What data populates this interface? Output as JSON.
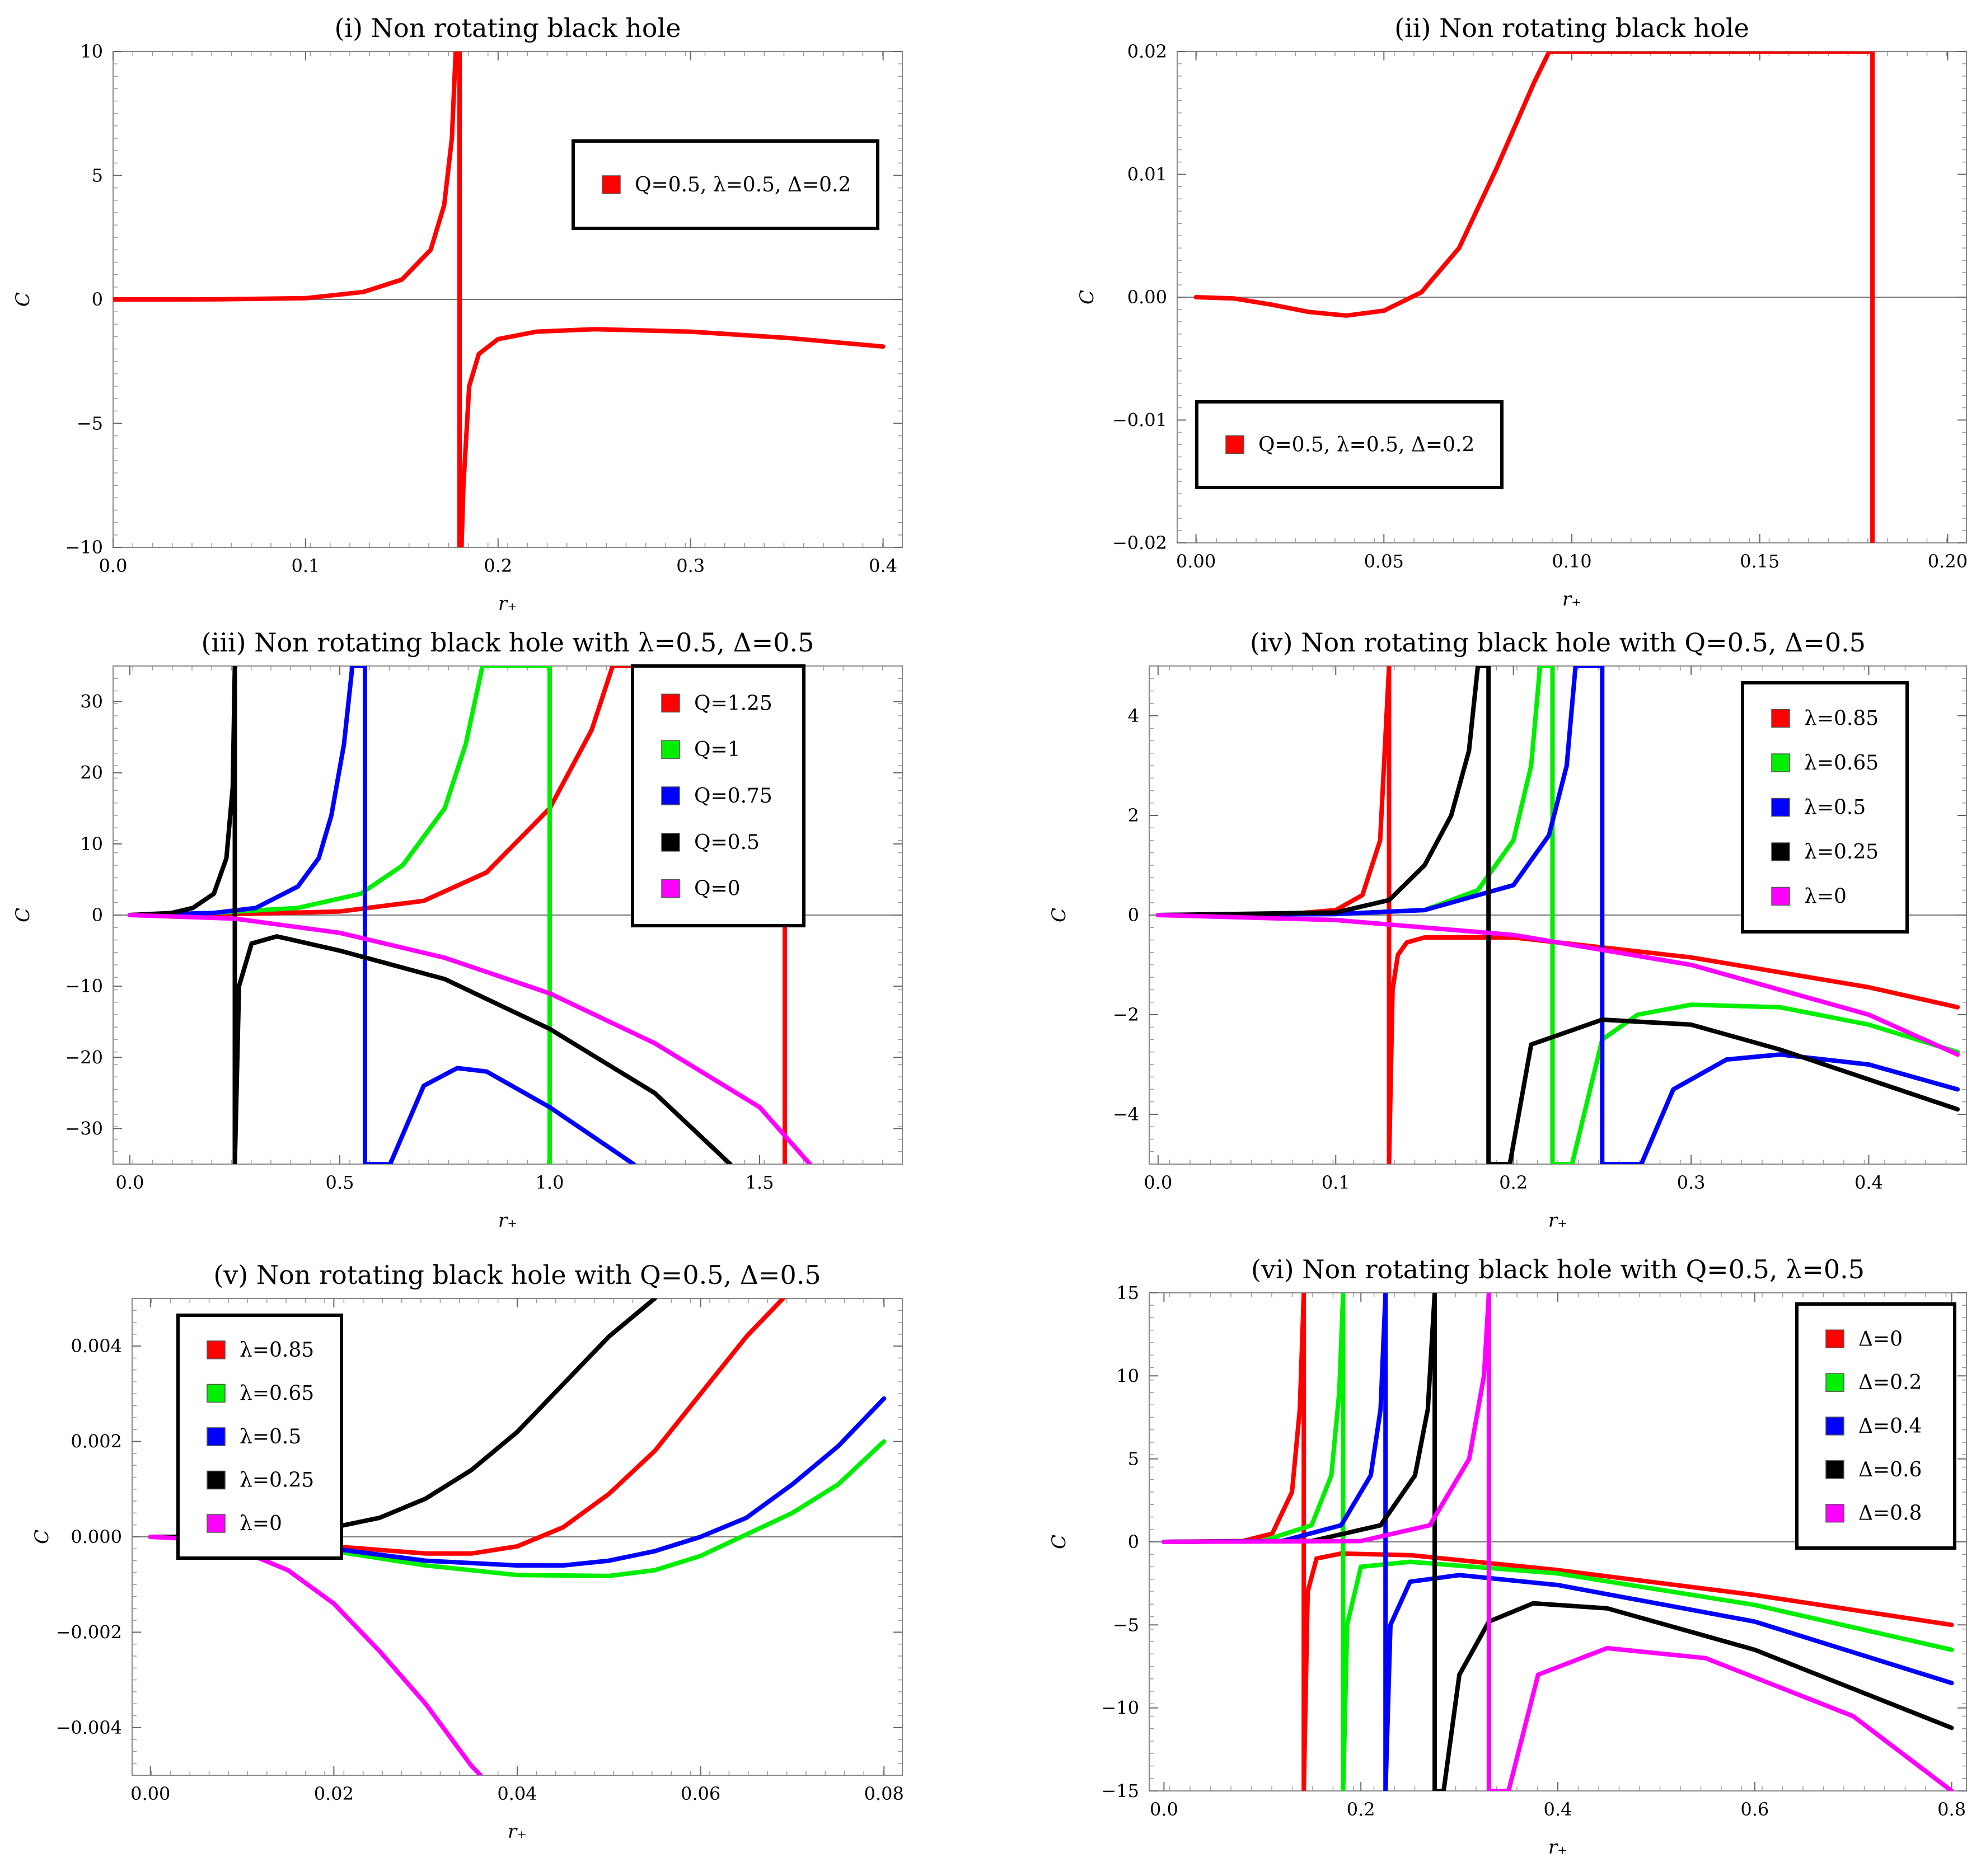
{
  "chart_data": [
    {
      "type": "line",
      "title": "(i) Non rotating black hole",
      "xlabel": "r₊",
      "ylabel": "C",
      "xlim": [
        0,
        0.41
      ],
      "ylim": [
        -10,
        10
      ],
      "xticks": [
        "0.0",
        "0.1",
        "0.2",
        "0.3",
        "0.4"
      ],
      "yticks": [
        "−10",
        "−5",
        "0",
        "5",
        "10"
      ],
      "legend_position": "top-right",
      "series": [
        {
          "name": "Q=0.5, λ=0.5, Δ=0.2",
          "color": "#ff0000",
          "x": [
            0,
            0.05,
            0.1,
            0.13,
            0.15,
            0.165,
            0.172,
            0.176,
            0.178,
            0.18,
            0.18,
            0.181,
            0.182,
            0.185,
            0.19,
            0.2,
            0.22,
            0.25,
            0.3,
            0.35,
            0.4
          ],
          "y": [
            0,
            0.003,
            0.05,
            0.3,
            0.8,
            2.0,
            3.8,
            6.5,
            10,
            10,
            -10,
            -10,
            -7.5,
            -3.5,
            -2.2,
            -1.6,
            -1.3,
            -1.2,
            -1.3,
            -1.55,
            -1.9
          ]
        }
      ]
    },
    {
      "type": "line",
      "title": "(ii) Non rotating black hole",
      "xlabel": "r₊",
      "ylabel": "C",
      "xlim": [
        -0.005,
        0.205
      ],
      "ylim": [
        -0.02,
        0.02
      ],
      "xticks": [
        "0.00",
        "0.05",
        "0.10",
        "0.15",
        "0.20"
      ],
      "yticks": [
        "−0.02",
        "−0.01",
        "0.00",
        "0.01",
        "0.02"
      ],
      "legend_position": "bottom-left",
      "series": [
        {
          "name": "Q=0.5, λ=0.5, Δ=0.2",
          "color": "#ff0000",
          "x": [
            0,
            0.01,
            0.02,
            0.03,
            0.04,
            0.05,
            0.06,
            0.07,
            0.08,
            0.09,
            0.094,
            0.18,
            0.18
          ],
          "y": [
            0,
            -0.0001,
            -0.0006,
            -0.0012,
            -0.0015,
            -0.0011,
            0.0004,
            0.004,
            0.0105,
            0.0175,
            0.02,
            0.02,
            -0.02
          ]
        }
      ]
    },
    {
      "type": "line",
      "title": "(iii) Non rotating black hole with λ=0.5, Δ=0.5",
      "xlabel": "r₊",
      "ylabel": "C",
      "xlim": [
        -0.04,
        1.84
      ],
      "ylim": [
        -35,
        35
      ],
      "xticks": [
        "0.0",
        "0.5",
        "1.0",
        "1.5"
      ],
      "yticks": [
        "−30",
        "−20",
        "−10",
        "0",
        "10",
        "20",
        "30"
      ],
      "legend_position": "top-right",
      "series": [
        {
          "name": "Q=1.25",
          "color": "#ff0000",
          "x": [
            0,
            0.3,
            0.5,
            0.7,
            0.85,
            1.0,
            1.1,
            1.15,
            1.56,
            1.56
          ],
          "y": [
            0,
            0.2,
            0.5,
            2.0,
            6.0,
            15.0,
            26.0,
            35.0,
            35.0,
            -35.0
          ]
        },
        {
          "name": "Q=1",
          "color": "#00ee00",
          "x": [
            0,
            0.2,
            0.4,
            0.55,
            0.65,
            0.75,
            0.8,
            0.84,
            1.0,
            1.0
          ],
          "y": [
            0,
            0.3,
            1.0,
            3.0,
            7.0,
            15.0,
            24.0,
            35.0,
            35.0,
            -35.0
          ]
        },
        {
          "name": "Q=0.75",
          "color": "#0000ff",
          "x": [
            0,
            0.2,
            0.3,
            0.4,
            0.45,
            0.48,
            0.51,
            0.53,
            0.56,
            0.56,
            0.62,
            0.7,
            0.78,
            0.85,
            1.0,
            1.2
          ],
          "y": [
            0,
            0.3,
            1.0,
            4.0,
            8.0,
            14.0,
            24.0,
            35.0,
            35.0,
            -35.0,
            -35.0,
            -24.0,
            -21.5,
            -22.0,
            -27.0,
            -35.0
          ]
        },
        {
          "name": "Q=0.5",
          "color": "#000000",
          "x": [
            0,
            0.1,
            0.15,
            0.2,
            0.23,
            0.245,
            0.25,
            0.25,
            0.25,
            0.26,
            0.29,
            0.35,
            0.5,
            0.75,
            1.0,
            1.25,
            1.43
          ],
          "y": [
            0,
            0.3,
            1.0,
            3.0,
            8.0,
            18.0,
            35.0,
            35.0,
            -35.0,
            -10.0,
            -4.0,
            -3.0,
            -5.0,
            -9.0,
            -16.0,
            -25.0,
            -35.0
          ]
        },
        {
          "name": "Q=0",
          "color": "#ff00ff",
          "x": [
            0,
            0.25,
            0.5,
            0.75,
            1.0,
            1.25,
            1.5,
            1.62
          ],
          "y": [
            0,
            -0.5,
            -2.5,
            -6.0,
            -11.0,
            -18.0,
            -27.0,
            -35.0
          ]
        }
      ],
      "vertical_asymptotes": [
        0.25,
        0.56,
        1.0,
        1.56
      ]
    },
    {
      "type": "line",
      "title": "(iv) Non rotating black hole with Q=0.5, Δ=0.5",
      "xlabel": "r₊",
      "ylabel": "C",
      "xlim": [
        -0.005,
        0.455
      ],
      "ylim": [
        -5,
        5
      ],
      "xticks": [
        "0.0",
        "0.1",
        "0.2",
        "0.3",
        "0.4"
      ],
      "yticks": [
        "−4",
        "−2",
        "0",
        "2",
        "4"
      ],
      "legend_position": "top-right",
      "series": [
        {
          "name": "λ=0.85",
          "color": "#ff0000",
          "x": [
            0,
            0.07,
            0.1,
            0.115,
            0.125,
            0.13,
            0.13,
            0.132,
            0.135,
            0.14,
            0.15,
            0.2,
            0.3,
            0.4,
            0.45
          ],
          "y": [
            0,
            0.01,
            0.1,
            0.4,
            1.5,
            5.0,
            -5.0,
            -1.5,
            -0.8,
            -0.55,
            -0.45,
            -0.45,
            -0.85,
            -1.45,
            -1.85
          ]
        },
        {
          "name": "λ=0.65",
          "color": "#00ee00",
          "x": [
            0,
            0.1,
            0.15,
            0.18,
            0.2,
            0.21,
            0.215,
            0.222,
            0.222,
            0.233,
            0.25,
            0.27,
            0.3,
            0.35,
            0.4,
            0.45
          ],
          "y": [
            0,
            0.02,
            0.1,
            0.5,
            1.5,
            3.0,
            5.0,
            5.0,
            -5.0,
            -5.0,
            -2.5,
            -2.0,
            -1.8,
            -1.85,
            -2.2,
            -2.75
          ]
        },
        {
          "name": "λ=0.5",
          "color": "#0000ff",
          "x": [
            0,
            0.1,
            0.15,
            0.2,
            0.22,
            0.23,
            0.235,
            0.25,
            0.25,
            0.272,
            0.29,
            0.32,
            0.35,
            0.4,
            0.45
          ],
          "y": [
            0,
            0.02,
            0.1,
            0.6,
            1.6,
            3.0,
            5.0,
            5.0,
            -5.0,
            -5.0,
            -3.5,
            -2.9,
            -2.8,
            -3.0,
            -3.5
          ]
        },
        {
          "name": "λ=0.25",
          "color": "#000000",
          "x": [
            0,
            0.1,
            0.13,
            0.15,
            0.165,
            0.175,
            0.18,
            0.186,
            0.186,
            0.198,
            0.21,
            0.25,
            0.3,
            0.35,
            0.4,
            0.45
          ],
          "y": [
            0,
            0.05,
            0.3,
            1.0,
            2.0,
            3.3,
            5.0,
            5.0,
            -5.0,
            -5.0,
            -2.6,
            -2.1,
            -2.2,
            -2.7,
            -3.3,
            -3.9
          ]
        },
        {
          "name": "λ=0",
          "color": "#ff00ff",
          "x": [
            0,
            0.1,
            0.2,
            0.3,
            0.4,
            0.45
          ],
          "y": [
            0,
            -0.1,
            -0.4,
            -1.0,
            -2.0,
            -2.8
          ]
        }
      ],
      "vertical_asymptotes": [
        0.13,
        0.186,
        0.222,
        0.25
      ]
    },
    {
      "type": "line",
      "title": "(v) Non rotating black hole with Q=0.5, Δ=0.5",
      "xlabel": "r₊",
      "ylabel": "C",
      "xlim": [
        -0.002,
        0.082
      ],
      "ylim": [
        -0.005,
        0.005
      ],
      "xticks": [
        "0.00",
        "0.02",
        "0.04",
        "0.06",
        "0.08"
      ],
      "yticks": [
        "−0.004",
        "−0.002",
        "0.000",
        "0.002",
        "0.004"
      ],
      "legend_position": "top-left",
      "series": [
        {
          "name": "λ=0.85",
          "color": "#ff0000",
          "x": [
            0,
            0.01,
            0.02,
            0.03,
            0.035,
            0.04,
            0.045,
            0.05,
            0.055,
            0.06,
            0.065,
            0.069
          ],
          "y": [
            0,
            -3e-05,
            -0.0002,
            -0.00035,
            -0.00035,
            -0.0002,
            0.0002,
            0.0009,
            0.0018,
            0.003,
            0.0042,
            0.005
          ]
        },
        {
          "name": "λ=0.65",
          "color": "#00ee00",
          "x": [
            0,
            0.01,
            0.02,
            0.03,
            0.04,
            0.05,
            0.055,
            0.06,
            0.065,
            0.07,
            0.075,
            0.08
          ],
          "y": [
            0,
            -5e-05,
            -0.0003,
            -0.0006,
            -0.0008,
            -0.00082,
            -0.0007,
            -0.0004,
            5e-05,
            0.0005,
            0.0011,
            0.002
          ]
        },
        {
          "name": "λ=0.5",
          "color": "#0000ff",
          "x": [
            0,
            0.01,
            0.02,
            0.03,
            0.04,
            0.045,
            0.05,
            0.055,
            0.06,
            0.065,
            0.07,
            0.075,
            0.08
          ],
          "y": [
            0,
            -5e-05,
            -0.00025,
            -0.0005,
            -0.0006,
            -0.0006,
            -0.0005,
            -0.0003,
            0.0,
            0.0004,
            0.0011,
            0.0019,
            0.0029
          ]
        },
        {
          "name": "λ=0.25",
          "color": "#000000",
          "x": [
            0,
            0.01,
            0.02,
            0.025,
            0.03,
            0.035,
            0.04,
            0.045,
            0.05,
            0.055
          ],
          "y": [
            0,
            0.0,
            0.0002,
            0.0004,
            0.0008,
            0.0014,
            0.0022,
            0.0032,
            0.0042,
            0.005
          ]
        },
        {
          "name": "λ=0",
          "color": "#ff00ff",
          "x": [
            0,
            0.005,
            0.01,
            0.015,
            0.02,
            0.025,
            0.03,
            0.035,
            0.036
          ],
          "y": [
            0,
            -5e-05,
            -0.0003,
            -0.0007,
            -0.0014,
            -0.0024,
            -0.0035,
            -0.0048,
            -0.005
          ]
        }
      ]
    },
    {
      "type": "line",
      "title": "(vi) Non rotating black hole with Q=0.5, λ=0.5",
      "xlabel": "r₊",
      "ylabel": "C",
      "xlim": [
        -0.015,
        0.815
      ],
      "ylim": [
        -15,
        15
      ],
      "xticks": [
        "0.0",
        "0.2",
        "0.4",
        "0.6",
        "0.8"
      ],
      "yticks": [
        "−15",
        "−10",
        "−5",
        "0",
        "5",
        "10",
        "15"
      ],
      "legend_position": "top-right",
      "series": [
        {
          "name": "Δ=0",
          "color": "#ff0000",
          "x": [
            0,
            0.08,
            0.11,
            0.13,
            0.138,
            0.142,
            0.142,
            0.146,
            0.155,
            0.18,
            0.25,
            0.4,
            0.6,
            0.8
          ],
          "y": [
            0,
            0.05,
            0.5,
            3.0,
            8.0,
            15.0,
            -15.0,
            -3.0,
            -1.0,
            -0.7,
            -0.8,
            -1.7,
            -3.2,
            -5.0
          ]
        },
        {
          "name": "Δ=0.2",
          "color": "#00ee00",
          "x": [
            0,
            0.1,
            0.15,
            0.17,
            0.178,
            0.182,
            0.182,
            0.186,
            0.2,
            0.25,
            0.4,
            0.6,
            0.8
          ],
          "y": [
            0,
            0.05,
            1.0,
            4.0,
            9.0,
            15.0,
            -15.0,
            -5.0,
            -1.5,
            -1.2,
            -1.9,
            -3.8,
            -6.5
          ]
        },
        {
          "name": "Δ=0.4",
          "color": "#0000ff",
          "x": [
            0,
            0.12,
            0.18,
            0.21,
            0.22,
            0.225,
            0.225,
            0.23,
            0.25,
            0.3,
            0.4,
            0.6,
            0.8
          ],
          "y": [
            0,
            0.05,
            1.0,
            4.0,
            8.0,
            15.0,
            -15.0,
            -5.0,
            -2.4,
            -2.0,
            -2.6,
            -4.8,
            -8.5
          ]
        },
        {
          "name": "Δ=0.6",
          "color": "#000000",
          "x": [
            0,
            0.15,
            0.22,
            0.255,
            0.268,
            0.275,
            0.275,
            0.284,
            0.3,
            0.33,
            0.375,
            0.45,
            0.6,
            0.8
          ],
          "y": [
            0,
            0.05,
            1.0,
            4.0,
            8.0,
            15.0,
            -15.0,
            -15.0,
            -8.0,
            -4.8,
            -3.7,
            -4.0,
            -6.5,
            -11.2
          ]
        },
        {
          "name": "Δ=0.8",
          "color": "#ff00ff",
          "x": [
            0,
            0.2,
            0.27,
            0.31,
            0.325,
            0.33,
            0.33,
            0.35,
            0.38,
            0.45,
            0.55,
            0.7,
            0.8
          ],
          "y": [
            0,
            0.05,
            1.0,
            5.0,
            10.0,
            15.0,
            -15.0,
            -15.0,
            -8.0,
            -6.4,
            -7.0,
            -10.5,
            -15.0
          ]
        }
      ],
      "vertical_asymptotes": [
        0.142,
        0.182,
        0.225,
        0.275,
        0.33
      ]
    }
  ]
}
